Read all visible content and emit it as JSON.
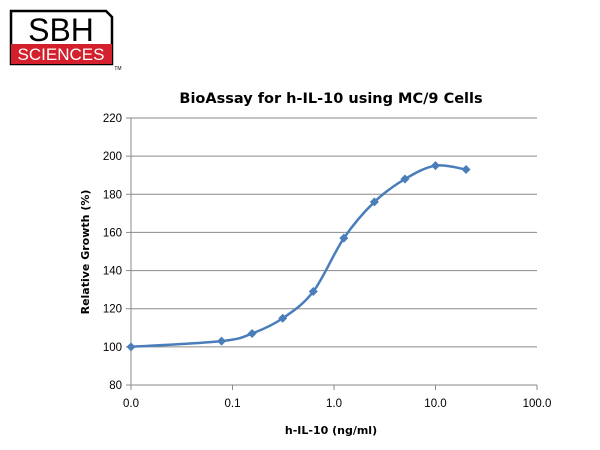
{
  "logo": {
    "line1": "SBH",
    "line2": "SCIENCES",
    "tm": "TM",
    "colors": {
      "red": "#d4202c",
      "black": "#000000"
    }
  },
  "chart_data": {
    "type": "line",
    "title": "BioAssay for h-IL-10 using MC/9 Cells",
    "xlabel": "h-IL-10 (ng/ml)",
    "ylabel": "Relative Growth (%)",
    "x_scale": "log",
    "x_ticks": [
      {
        "value": 0.01,
        "label": "0.0"
      },
      {
        "value": 0.1,
        "label": "0.1"
      },
      {
        "value": 1,
        "label": "1.0"
      },
      {
        "value": 10,
        "label": "10.0"
      },
      {
        "value": 100,
        "label": "100.0"
      }
    ],
    "xlim": [
      0.01,
      100
    ],
    "ylim": [
      80,
      220
    ],
    "y_ticks": [
      80,
      100,
      120,
      140,
      160,
      180,
      200,
      220
    ],
    "grid": "horizontal",
    "legend": "none",
    "series": [
      {
        "color": "#4a7ebb",
        "marker": "diamond",
        "smooth": true,
        "points": [
          {
            "x": 0.01,
            "y": 100
          },
          {
            "x": 0.078,
            "y": 103
          },
          {
            "x": 0.156,
            "y": 107
          },
          {
            "x": 0.3125,
            "y": 115
          },
          {
            "x": 0.625,
            "y": 129
          },
          {
            "x": 1.25,
            "y": 157
          },
          {
            "x": 2.5,
            "y": 176
          },
          {
            "x": 5,
            "y": 188
          },
          {
            "x": 10,
            "y": 195
          },
          {
            "x": 20,
            "y": 193
          }
        ]
      }
    ]
  }
}
